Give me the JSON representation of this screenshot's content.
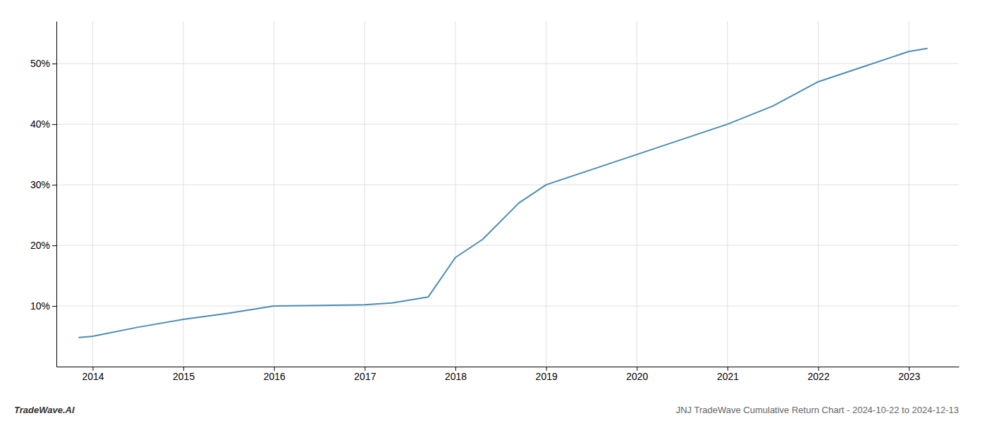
{
  "chart_data": {
    "type": "line",
    "x": [
      2013.85,
      2014.0,
      2014.5,
      2015.0,
      2015.5,
      2016.0,
      2016.5,
      2017.0,
      2017.3,
      2017.7,
      2018.0,
      2018.3,
      2018.7,
      2019.0,
      2019.5,
      2020.0,
      2020.5,
      2021.0,
      2021.5,
      2022.0,
      2022.5,
      2023.0,
      2023.2
    ],
    "values": [
      4.8,
      5.0,
      6.5,
      7.8,
      8.8,
      10.0,
      10.1,
      10.2,
      10.5,
      11.5,
      18.0,
      21.0,
      27.0,
      30.0,
      32.5,
      35.0,
      37.5,
      40.0,
      43.0,
      47.0,
      49.5,
      52.0,
      52.5
    ],
    "color": "#4a8db5",
    "xlim": [
      2013.6,
      2023.55
    ],
    "xticks": [
      2014,
      2015,
      2016,
      2017,
      2018,
      2019,
      2020,
      2021,
      2022,
      2023
    ],
    "ylim": [
      0,
      57
    ],
    "yticks": [
      {
        "value": 10,
        "label": "10%"
      },
      {
        "value": 20,
        "label": "20%"
      },
      {
        "value": 30,
        "label": "30%"
      },
      {
        "value": 40,
        "label": "40%"
      },
      {
        "value": 50,
        "label": "50%"
      }
    ],
    "grid": true,
    "annotations": [
      "TradeWave.AI",
      "JNJ TradeWave Cumulative Return Chart - 2024-10-22 to 2024-12-13"
    ]
  }
}
